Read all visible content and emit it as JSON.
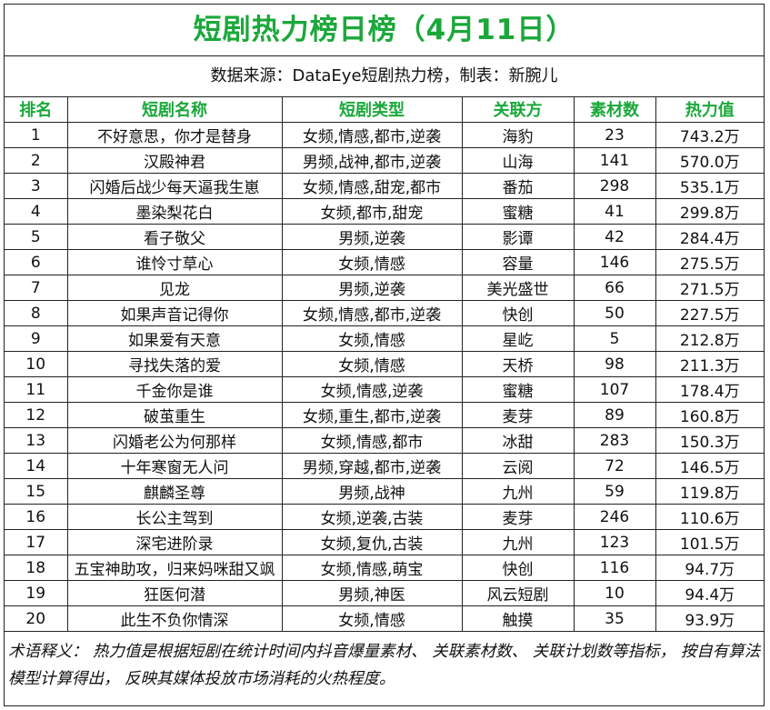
{
  "title": "短剧热力榜日榜（4月11日）",
  "subtitle": "数据来源：DataEye短剧热力榜，制表：新腕儿",
  "headers": [
    "排名",
    "短剧名称",
    "短剧类型",
    "关联方",
    "素材数",
    "热力值"
  ],
  "rows": [
    {
      "rank": "1",
      "name": "不好意思，你才是替身",
      "type": "女频,情感,都市,逆袭",
      "partner": "海豹",
      "materials": "23",
      "heat": "743.2万"
    },
    {
      "rank": "2",
      "name": "汉殿神君",
      "type": "男频,战神,都市,逆袭",
      "partner": "山海",
      "materials": "141",
      "heat": "570.0万"
    },
    {
      "rank": "3",
      "name": "闪婚后战少每天逼我生崽",
      "type": "女频,情感,甜宠,都市",
      "partner": "番茄",
      "materials": "298",
      "heat": "535.1万"
    },
    {
      "rank": "4",
      "name": "墨染梨花白",
      "type": "女频,都市,甜宠",
      "partner": "蜜糖",
      "materials": "41",
      "heat": "299.8万"
    },
    {
      "rank": "5",
      "name": "看子敬父",
      "type": "男频,逆袭",
      "partner": "影谭",
      "materials": "42",
      "heat": "284.4万"
    },
    {
      "rank": "6",
      "name": "谁怜寸草心",
      "type": "女频,情感",
      "partner": "容量",
      "materials": "146",
      "heat": "275.5万"
    },
    {
      "rank": "7",
      "name": "见龙",
      "type": "男频,逆袭",
      "partner": "美光盛世",
      "materials": "66",
      "heat": "271.5万"
    },
    {
      "rank": "8",
      "name": "如果声音记得你",
      "type": "女频,情感,都市,逆袭",
      "partner": "快创",
      "materials": "50",
      "heat": "227.5万"
    },
    {
      "rank": "9",
      "name": "如果爱有天意",
      "type": "女频,情感",
      "partner": "星屹",
      "materials": "5",
      "heat": "212.8万"
    },
    {
      "rank": "10",
      "name": "寻找失落的爱",
      "type": "女频,情感",
      "partner": "天桥",
      "materials": "98",
      "heat": "211.3万"
    },
    {
      "rank": "11",
      "name": "千金你是谁",
      "type": "女频,情感,逆袭",
      "partner": "蜜糖",
      "materials": "107",
      "heat": "178.4万"
    },
    {
      "rank": "12",
      "name": "破茧重生",
      "type": "女频,重生,都市,逆袭",
      "partner": "麦芽",
      "materials": "89",
      "heat": "160.8万"
    },
    {
      "rank": "13",
      "name": "闪婚老公为何那样",
      "type": "女频,情感,都市",
      "partner": "冰甜",
      "materials": "283",
      "heat": "150.3万"
    },
    {
      "rank": "14",
      "name": "十年寒窗无人问",
      "type": "男频,穿越,都市,逆袭",
      "partner": "云阅",
      "materials": "72",
      "heat": "146.5万"
    },
    {
      "rank": "15",
      "name": "麒麟圣尊",
      "type": "男频,战神",
      "partner": "九州",
      "materials": "59",
      "heat": "119.8万"
    },
    {
      "rank": "16",
      "name": "长公主驾到",
      "type": "女频,逆袭,古装",
      "partner": "麦芽",
      "materials": "246",
      "heat": "110.6万"
    },
    {
      "rank": "17",
      "name": "深宅进阶录",
      "type": "女频,复仇,古装",
      "partner": "九州",
      "materials": "123",
      "heat": "101.5万"
    },
    {
      "rank": "18",
      "name": "五宝神助攻，归来妈咪甜又飒",
      "type": "女频,情感,萌宝",
      "partner": "快创",
      "materials": "116",
      "heat": "94.7万"
    },
    {
      "rank": "19",
      "name": "狂医何潜",
      "type": "男频,神医",
      "partner": "风云短剧",
      "materials": "10",
      "heat": "94.4万"
    },
    {
      "rank": "20",
      "name": "此生不负你情深",
      "type": "女频,情感",
      "partner": "触摸",
      "materials": "35",
      "heat": "93.9万"
    }
  ],
  "note": "术语释义： 热力值是根据短剧在统计时间内抖音爆量素材、 关联素材数、 关联计划数等指标， 按自有算法模型计算得出， 反映其媒体投放市场消耗的火热程度。"
}
